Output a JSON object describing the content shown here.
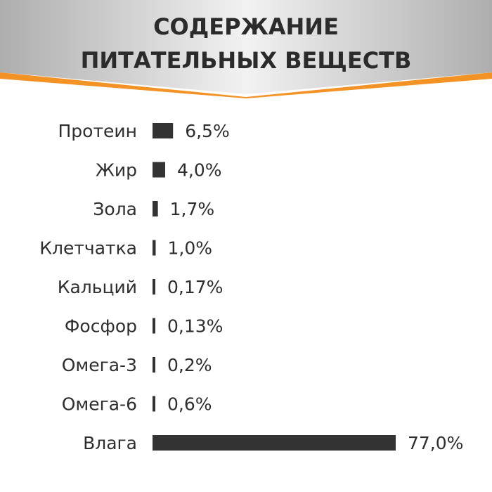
{
  "title_lines": [
    "СОДЕРЖАНИЕ",
    "ПИТАТЕЛЬНЫХ ВЕЩЕСТВ"
  ],
  "colors": {
    "bar": "#333333",
    "accent": "#f39325",
    "banner_light": "#f2f2f2",
    "banner_dark": "#aeaeae"
  },
  "chart_data": {
    "type": "bar",
    "orientation": "horizontal",
    "title": "СОДЕРЖАНИЕ ПИТАТЕЛЬНЫХ ВЕЩЕСТВ",
    "categories": [
      "Протеин",
      "Жир",
      "Зола",
      "Клетчатка",
      "Кальций",
      "Фосфор",
      "Омега-3",
      "Омега-6",
      "Влага"
    ],
    "values": [
      6.5,
      4.0,
      1.7,
      1.0,
      0.17,
      0.13,
      0.2,
      0.6,
      77.0
    ],
    "value_labels": [
      "6,5%",
      "4,0%",
      "1,7%",
      "1,0%",
      "0,17%",
      "0,13%",
      "0,2%",
      "0,6%",
      "77,0%"
    ],
    "unit": "%"
  }
}
